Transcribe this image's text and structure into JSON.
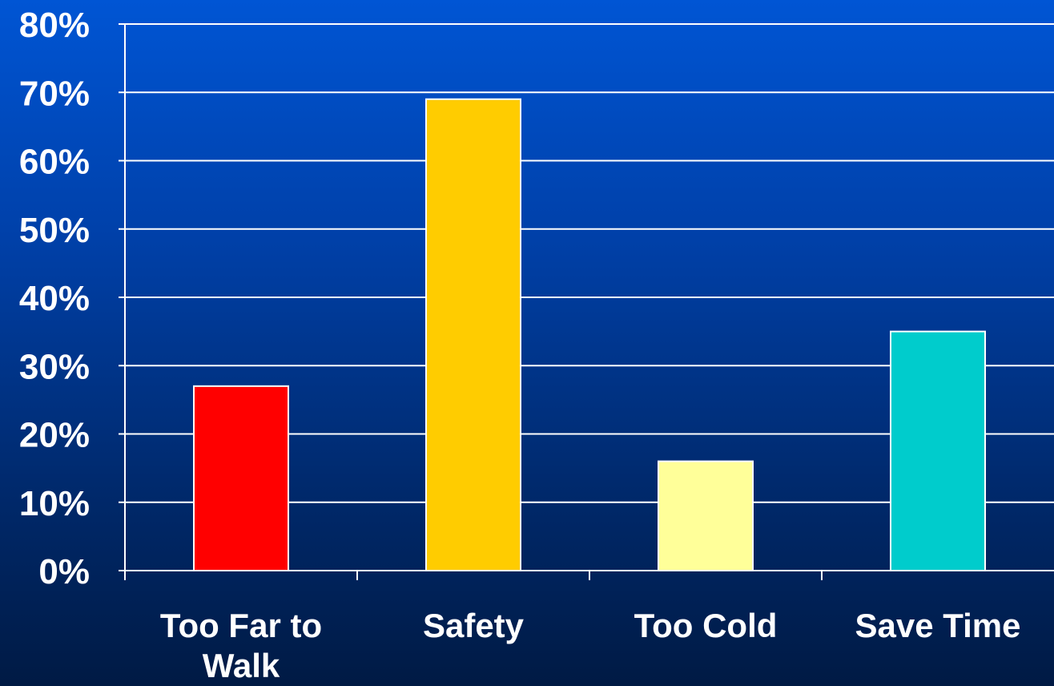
{
  "chart_data": {
    "type": "bar",
    "categories": [
      "Too Far to Walk",
      "Safety",
      "Too Cold",
      "Save Time"
    ],
    "category_lines": [
      [
        "Too Far to",
        "Walk"
      ],
      [
        "Safety"
      ],
      [
        "Too Cold"
      ],
      [
        "Save Time"
      ]
    ],
    "values": [
      27,
      69,
      16,
      35
    ],
    "colors": [
      "#ff0000",
      "#ffcc00",
      "#ffff99",
      "#00cccc"
    ],
    "title": "",
    "xlabel": "",
    "ylabel": "",
    "ylim": [
      0,
      80
    ],
    "ytick_values": [
      0,
      10,
      20,
      30,
      40,
      50,
      60,
      70,
      80
    ],
    "ytick_labels": [
      "0%",
      "10%",
      "20%",
      "30%",
      "40%",
      "50%",
      "60%",
      "70%",
      "80%"
    ],
    "grid": true,
    "legend": "none"
  }
}
